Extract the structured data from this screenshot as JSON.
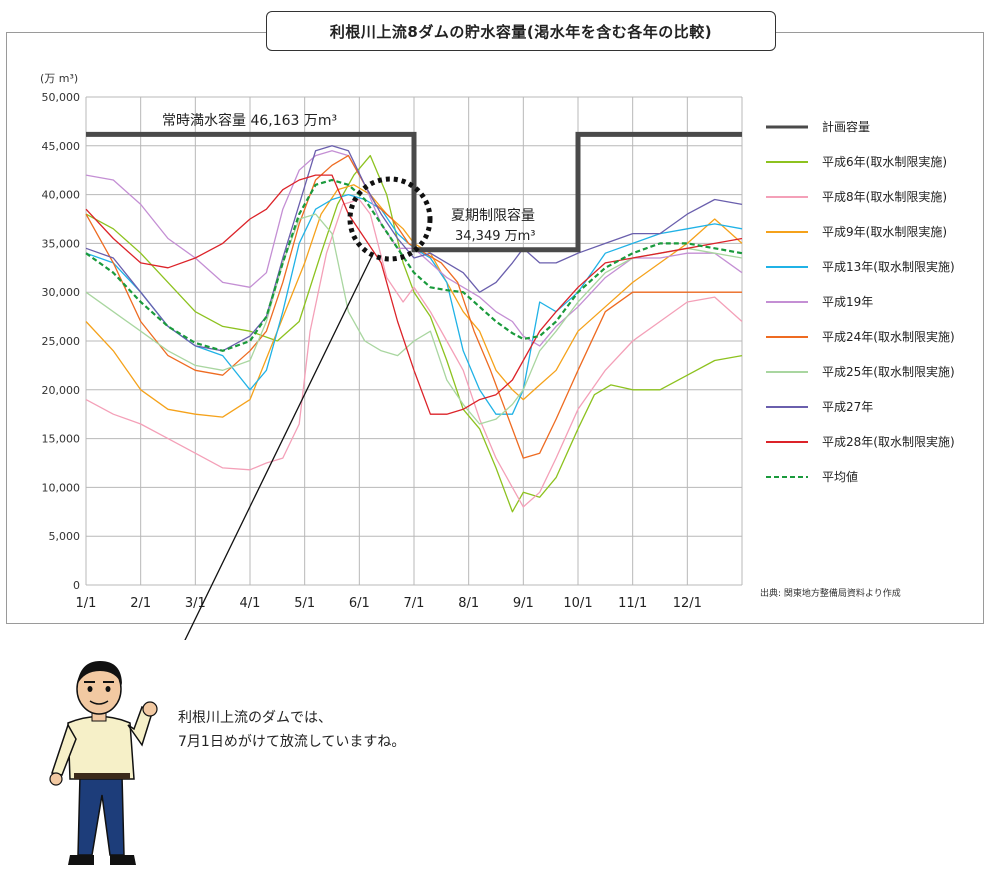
{
  "title": "利根川上流8ダムの貯水容量(渇水年を含む各年の比較)",
  "source_note": "出典: 関東地方整備局資料より作成",
  "speech": {
    "line1": "利根川上流のダムでは、",
    "line2": "7月1日めがけて放流していますね。"
  },
  "chart_data": {
    "type": "line",
    "ylabel": "(万 m³)",
    "ylim": [
      0,
      50000
    ],
    "yticks": [
      0,
      5000,
      10000,
      15000,
      20000,
      25000,
      30000,
      35000,
      40000,
      45000,
      50000
    ],
    "ytick_labels": [
      "0",
      "5,000",
      "10,000",
      "15,000",
      "20,000",
      "25,000",
      "30,000",
      "35,000",
      "40,000",
      "45,000",
      "50,000"
    ],
    "xlim": [
      0,
      12
    ],
    "xtick_labels": [
      "1/1",
      "2/1",
      "3/1",
      "4/1",
      "5/1",
      "6/1",
      "7/1",
      "8/1",
      "9/1",
      "10/1",
      "11/1",
      "12/1"
    ],
    "grid": true,
    "legend_position": "right",
    "annotations": {
      "full": "常時満水容量 46,163 万m³",
      "summer_line1": "夏期制限容量",
      "summer_line2": "34,349 万m³"
    },
    "plan": {
      "name": "計画容量",
      "color": "#4a4a4a",
      "x": [
        0,
        6,
        6,
        9,
        9,
        12
      ],
      "y": [
        46163,
        46163,
        34349,
        34349,
        46163,
        46163
      ]
    },
    "series": [
      {
        "name": "平成6年(取水制限実施)",
        "color": "#8dc21f",
        "x": [
          0,
          0.5,
          1,
          1.5,
          2,
          2.5,
          3,
          3.5,
          3.9,
          4.3,
          4.6,
          4.9,
          5.2,
          5.5,
          5.8,
          6,
          6.3,
          6.6,
          6.9,
          7.2,
          7.5,
          7.8,
          8,
          8.3,
          8.6,
          9,
          9.3,
          9.6,
          10,
          10.5,
          11,
          11.5,
          12
        ],
        "y": [
          38000,
          36500,
          34000,
          31000,
          28000,
          26500,
          26000,
          25000,
          27000,
          34000,
          39000,
          42000,
          44000,
          40000,
          33000,
          30000,
          27500,
          23000,
          18000,
          16000,
          12000,
          7500,
          9500,
          9000,
          11000,
          16000,
          19500,
          20500,
          20000,
          20000,
          21500,
          23000,
          23500
        ]
      },
      {
        "name": "平成8年(取水制限実施)",
        "color": "#f4a0b8",
        "x": [
          0,
          0.5,
          1,
          1.5,
          2,
          2.5,
          3,
          3.3,
          3.6,
          3.9,
          4.1,
          4.4,
          4.7,
          5,
          5.2,
          5.5,
          5.8,
          6,
          6.3,
          6.6,
          6.9,
          7.2,
          7.5,
          7.8,
          8,
          8.3,
          8.6,
          9,
          9.5,
          10,
          10.5,
          11,
          11.5,
          12
        ],
        "y": [
          19000,
          17500,
          16500,
          15000,
          13500,
          12000,
          11800,
          12500,
          13000,
          16500,
          26000,
          34000,
          39000,
          39500,
          38000,
          31500,
          29000,
          30500,
          28000,
          25000,
          22000,
          17000,
          13000,
          10000,
          8000,
          9500,
          13000,
          18000,
          22000,
          25000,
          27000,
          29000,
          29500,
          27000
        ]
      },
      {
        "name": "平成9年(取水制限実施)",
        "color": "#f5a21b",
        "x": [
          0,
          0.5,
          1,
          1.5,
          2,
          2.5,
          3,
          3.5,
          4,
          4.3,
          4.6,
          4.9,
          5.2,
          5.5,
          5.8,
          6,
          6.3,
          6.6,
          6.9,
          7.2,
          7.5,
          7.8,
          8,
          8.3,
          8.6,
          9,
          9.5,
          10,
          10.5,
          11,
          11.5,
          12
        ],
        "y": [
          27000,
          24000,
          20000,
          18000,
          17500,
          17200,
          19000,
          26000,
          33000,
          38000,
          40500,
          41000,
          40000,
          38000,
          36500,
          35000,
          34000,
          31000,
          28000,
          26000,
          22000,
          20000,
          19000,
          20500,
          22000,
          26000,
          28500,
          31000,
          33000,
          35000,
          37500,
          35000
        ]
      },
      {
        "name": "平成13年(取水制限実施)",
        "color": "#20b2e6",
        "x": [
          0,
          0.5,
          1,
          1.5,
          2,
          2.5,
          3,
          3.3,
          3.6,
          3.9,
          4.2,
          4.5,
          4.8,
          5.1,
          5.4,
          5.7,
          6,
          6.3,
          6.6,
          6.9,
          7.2,
          7.5,
          7.8,
          8,
          8.3,
          8.6,
          9,
          9.5,
          10,
          10.5,
          11,
          11.5,
          12
        ],
        "y": [
          34000,
          33000,
          30000,
          26500,
          24500,
          23500,
          20000,
          22000,
          28000,
          35000,
          38500,
          39500,
          40000,
          39500,
          38500,
          36000,
          34500,
          33500,
          31000,
          24000,
          20000,
          17500,
          17500,
          20000,
          29000,
          28000,
          30000,
          34000,
          35000,
          36000,
          36500,
          37000,
          36500
        ]
      },
      {
        "name": "平成19年",
        "color": "#c48fd4",
        "x": [
          0,
          0.5,
          1,
          1.5,
          2,
          2.5,
          3,
          3.3,
          3.6,
          3.9,
          4.2,
          4.5,
          4.8,
          5.1,
          5.4,
          5.7,
          6,
          6.3,
          6.6,
          6.9,
          7.2,
          7.5,
          7.8,
          8,
          8.3,
          8.6,
          9,
          9.5,
          10,
          10.5,
          11,
          11.5,
          12
        ],
        "y": [
          42000,
          41500,
          39000,
          35500,
          33500,
          31000,
          30500,
          32000,
          38500,
          42500,
          44000,
          44500,
          44000,
          41000,
          37000,
          34500,
          34500,
          33000,
          31500,
          30500,
          29500,
          28000,
          27000,
          25500,
          24500,
          26500,
          28500,
          31500,
          33500,
          33500,
          34000,
          34000,
          32000
        ]
      },
      {
        "name": "平成24年(取水制限実施)",
        "color": "#ee6b21",
        "x": [
          0,
          0.5,
          1,
          1.5,
          2,
          2.5,
          3,
          3.3,
          3.6,
          3.9,
          4.2,
          4.5,
          4.8,
          5,
          5.3,
          5.6,
          5.9,
          6.2,
          6.5,
          6.8,
          7.1,
          7.4,
          7.7,
          8,
          8.3,
          8.6,
          9,
          9.5,
          10,
          10.5,
          11,
          11.5,
          12
        ],
        "y": [
          38000,
          33000,
          27000,
          23500,
          22000,
          21500,
          24000,
          26000,
          31000,
          37000,
          41500,
          43000,
          44000,
          42000,
          39000,
          37500,
          35000,
          34000,
          33000,
          31000,
          26000,
          22000,
          17500,
          13000,
          13500,
          17000,
          22000,
          28000,
          30000,
          30000,
          30000,
          30000,
          30000
        ]
      },
      {
        "name": "平成25年(取水制限実施)",
        "color": "#a9d6a0",
        "x": [
          0,
          0.5,
          1,
          1.5,
          2,
          2.5,
          3,
          3.3,
          3.6,
          3.9,
          4.2,
          4.5,
          4.8,
          5.1,
          5.4,
          5.7,
          6,
          6.3,
          6.6,
          6.9,
          7.2,
          7.5,
          7.8,
          8,
          8.3,
          8.6,
          9,
          9.5,
          10,
          10.5,
          11,
          11.5,
          12
        ],
        "y": [
          30000,
          28000,
          26000,
          24000,
          22500,
          22000,
          23000,
          27000,
          33000,
          37500,
          38000,
          36000,
          28000,
          25000,
          24000,
          23500,
          25000,
          26000,
          21000,
          18500,
          16500,
          17000,
          18500,
          20000,
          24000,
          26000,
          29000,
          32000,
          33500,
          34000,
          34500,
          34000,
          33500
        ]
      },
      {
        "name": "平成27年",
        "color": "#6a5fad",
        "x": [
          0,
          0.5,
          1,
          1.5,
          2,
          2.5,
          3,
          3.3,
          3.6,
          3.9,
          4.2,
          4.5,
          4.8,
          5.1,
          5.4,
          5.7,
          6,
          6.3,
          6.6,
          6.9,
          7.2,
          7.5,
          7.8,
          8,
          8.3,
          8.6,
          9,
          9.5,
          10,
          10.5,
          11,
          11.5,
          12
        ],
        "y": [
          34500,
          33500,
          30000,
          26500,
          24500,
          24000,
          25500,
          27500,
          33500,
          39000,
          44500,
          45000,
          44500,
          41000,
          38000,
          35500,
          33500,
          34000,
          33000,
          32000,
          30000,
          31000,
          33000,
          34500,
          33000,
          33000,
          34000,
          35000,
          36000,
          36000,
          38000,
          39500,
          39000
        ]
      },
      {
        "name": "平成28年(取水制限実施)",
        "color": "#dc2329",
        "x": [
          0,
          0.5,
          1,
          1.5,
          2,
          2.5,
          3,
          3.3,
          3.6,
          3.9,
          4.2,
          4.5,
          4.8,
          5.1,
          5.4,
          5.7,
          6,
          6.3,
          6.6,
          6.9,
          7.2,
          7.5,
          7.8,
          8,
          8.3,
          8.6,
          9,
          9.5,
          10,
          10.5,
          11,
          11.5,
          12
        ],
        "y": [
          38500,
          35500,
          33000,
          32500,
          33500,
          35000,
          37500,
          38500,
          40500,
          41500,
          42000,
          42000,
          38000,
          35500,
          33000,
          27000,
          22000,
          17500,
          17500,
          18000,
          19000,
          19500,
          21000,
          23000,
          26000,
          28000,
          30500,
          33000,
          33500,
          34000,
          34500,
          35000,
          35500
        ]
      },
      {
        "name": "平均値",
        "color": "#1a9a3c",
        "dashed": true,
        "x": [
          0,
          0.5,
          1,
          1.5,
          2,
          2.5,
          3,
          3.3,
          3.6,
          3.9,
          4.2,
          4.5,
          4.8,
          5.1,
          5.4,
          5.7,
          6,
          6.3,
          6.6,
          6.9,
          7.2,
          7.5,
          7.8,
          8,
          8.3,
          8.6,
          9,
          9.5,
          10,
          10.5,
          11,
          11.5,
          12
        ],
        "y": [
          34000,
          32000,
          29000,
          26500,
          24800,
          24000,
          25000,
          27500,
          33000,
          38000,
          41000,
          41500,
          41000,
          39500,
          37000,
          34500,
          32000,
          30500,
          30200,
          30000,
          28500,
          27000,
          25800,
          25200,
          25500,
          27000,
          30000,
          32500,
          34000,
          35000,
          35000,
          34500,
          34000
        ]
      }
    ]
  }
}
